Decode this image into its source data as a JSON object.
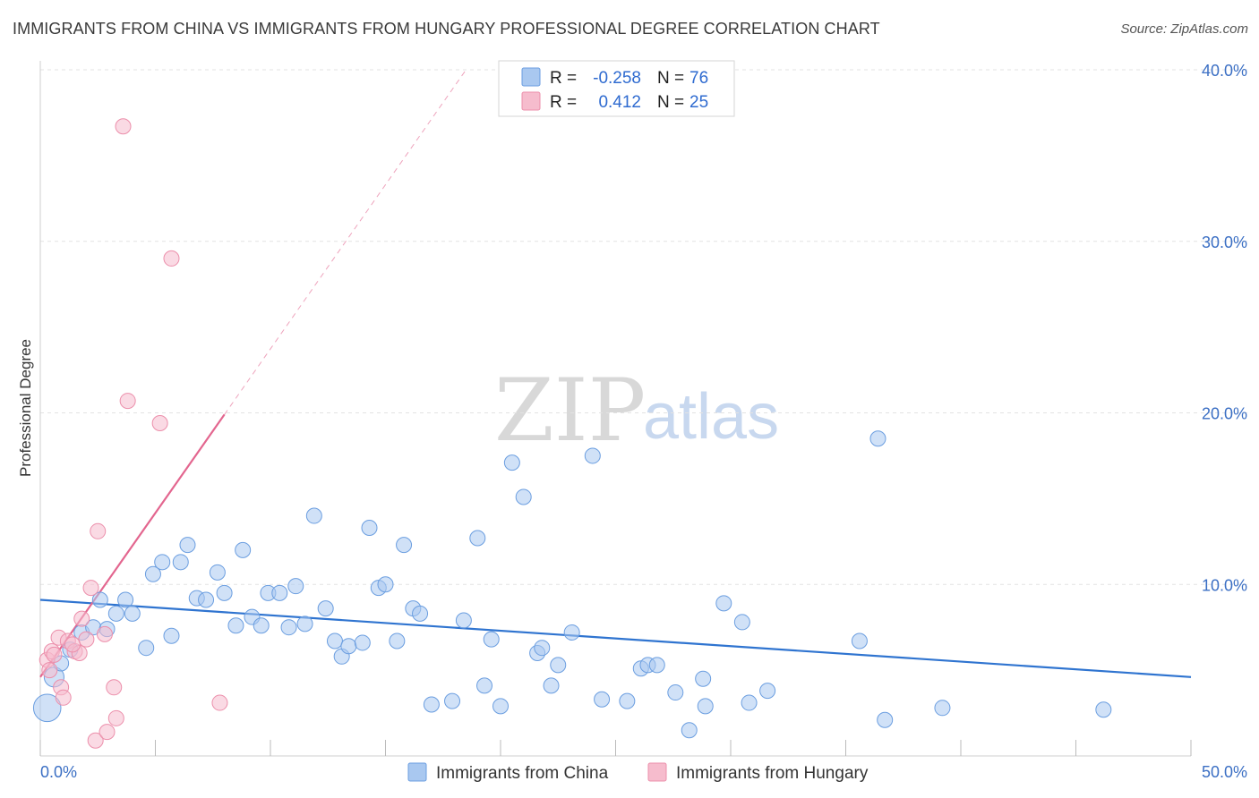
{
  "title": "IMMIGRANTS FROM CHINA VS IMMIGRANTS FROM HUNGARY PROFESSIONAL DEGREE CORRELATION CHART",
  "source": "Source: ZipAtlas.com",
  "watermark": {
    "zip": "ZIP",
    "atlas": "atlas"
  },
  "legend": {
    "rows": [
      {
        "r_label": "R =",
        "r_value": "-0.258",
        "n_label": "N =",
        "n_value": "76"
      },
      {
        "r_label": "R =",
        "r_value": "0.412",
        "n_label": "N =",
        "n_value": "25"
      }
    ]
  },
  "colors": {
    "china_fill": "#a9c8f0",
    "china_stroke": "#6b9ee0",
    "china_line": "#2f74d0",
    "hungary_fill": "#f6bccd",
    "hungary_stroke": "#ec8fab",
    "hungary_line": "#e3668f",
    "grid": "#e3e3e3",
    "axis_label": "#3b6fc4"
  },
  "chart_data": {
    "type": "scatter",
    "title": "IMMIGRANTS FROM CHINA VS IMMIGRANTS FROM HUNGARY PROFESSIONAL DEGREE CORRELATION CHART",
    "xlabel": "",
    "ylabel": "Professional Degree",
    "xlim": [
      0,
      50
    ],
    "ylim": [
      0,
      42
    ],
    "x_tick_labels": [
      "0.0%",
      "50.0%"
    ],
    "y_ticks": [
      10,
      20,
      30,
      40
    ],
    "y_tick_labels": [
      "10.0%",
      "20.0%",
      "30.0%",
      "40.0%"
    ],
    "grid": true,
    "legend_position": "top-center",
    "series": [
      {
        "name": "Immigrants from China",
        "r": -0.258,
        "n": 76,
        "trend": {
          "x": [
            0,
            50
          ],
          "y": [
            9.1,
            4.6
          ],
          "dashed_extension": false
        },
        "points": [
          {
            "x": 0.3,
            "y": 2.8,
            "s": 1.8
          },
          {
            "x": 0.6,
            "y": 4.6,
            "s": 1.3
          },
          {
            "x": 0.9,
            "y": 5.4,
            "s": 1.0
          },
          {
            "x": 1.3,
            "y": 6.2,
            "s": 1.0
          },
          {
            "x": 1.8,
            "y": 7.2,
            "s": 1.0
          },
          {
            "x": 2.3,
            "y": 7.5,
            "s": 1.0
          },
          {
            "x": 2.6,
            "y": 9.1,
            "s": 1.0
          },
          {
            "x": 2.9,
            "y": 7.4,
            "s": 1.0
          },
          {
            "x": 3.3,
            "y": 8.3,
            "s": 1.0
          },
          {
            "x": 3.7,
            "y": 9.1,
            "s": 1.0
          },
          {
            "x": 4.0,
            "y": 8.3,
            "s": 1.0
          },
          {
            "x": 4.6,
            "y": 6.3,
            "s": 1.0
          },
          {
            "x": 4.9,
            "y": 10.6,
            "s": 1.0
          },
          {
            "x": 5.3,
            "y": 11.3,
            "s": 1.0
          },
          {
            "x": 5.7,
            "y": 7.0,
            "s": 1.0
          },
          {
            "x": 6.1,
            "y": 11.3,
            "s": 1.0
          },
          {
            "x": 6.4,
            "y": 12.3,
            "s": 1.0
          },
          {
            "x": 6.8,
            "y": 9.2,
            "s": 1.0
          },
          {
            "x": 7.2,
            "y": 9.1,
            "s": 1.0
          },
          {
            "x": 7.7,
            "y": 10.7,
            "s": 1.0
          },
          {
            "x": 8.0,
            "y": 9.5,
            "s": 1.0
          },
          {
            "x": 8.5,
            "y": 7.6,
            "s": 1.0
          },
          {
            "x": 8.8,
            "y": 12.0,
            "s": 1.0
          },
          {
            "x": 9.2,
            "y": 8.1,
            "s": 1.0
          },
          {
            "x": 9.6,
            "y": 7.6,
            "s": 1.0
          },
          {
            "x": 9.9,
            "y": 9.5,
            "s": 1.0
          },
          {
            "x": 10.4,
            "y": 9.5,
            "s": 1.0
          },
          {
            "x": 10.8,
            "y": 7.5,
            "s": 1.0
          },
          {
            "x": 11.1,
            "y": 9.9,
            "s": 1.0
          },
          {
            "x": 11.5,
            "y": 7.7,
            "s": 1.0
          },
          {
            "x": 11.9,
            "y": 14.0,
            "s": 1.0
          },
          {
            "x": 12.4,
            "y": 8.6,
            "s": 1.0
          },
          {
            "x": 12.8,
            "y": 6.7,
            "s": 1.0
          },
          {
            "x": 13.1,
            "y": 5.8,
            "s": 1.0
          },
          {
            "x": 13.4,
            "y": 6.4,
            "s": 1.0
          },
          {
            "x": 14.0,
            "y": 6.6,
            "s": 1.0
          },
          {
            "x": 14.3,
            "y": 13.3,
            "s": 1.0
          },
          {
            "x": 14.7,
            "y": 9.8,
            "s": 1.0
          },
          {
            "x": 15.0,
            "y": 10.0,
            "s": 1.0
          },
          {
            "x": 15.5,
            "y": 6.7,
            "s": 1.0
          },
          {
            "x": 15.8,
            "y": 12.3,
            "s": 1.0
          },
          {
            "x": 16.2,
            "y": 8.6,
            "s": 1.0
          },
          {
            "x": 16.5,
            "y": 8.3,
            "s": 1.0
          },
          {
            "x": 17.0,
            "y": 3.0,
            "s": 1.0
          },
          {
            "x": 17.9,
            "y": 3.2,
            "s": 1.0
          },
          {
            "x": 18.4,
            "y": 7.9,
            "s": 1.0
          },
          {
            "x": 19.0,
            "y": 12.7,
            "s": 1.0
          },
          {
            "x": 19.3,
            "y": 4.1,
            "s": 1.0
          },
          {
            "x": 19.6,
            "y": 6.8,
            "s": 1.0
          },
          {
            "x": 20.0,
            "y": 2.9,
            "s": 1.0
          },
          {
            "x": 20.5,
            "y": 17.1,
            "s": 1.0
          },
          {
            "x": 21.0,
            "y": 15.1,
            "s": 1.0
          },
          {
            "x": 21.6,
            "y": 6.0,
            "s": 1.0
          },
          {
            "x": 21.8,
            "y": 6.3,
            "s": 1.0
          },
          {
            "x": 22.2,
            "y": 4.1,
            "s": 1.0
          },
          {
            "x": 22.5,
            "y": 5.3,
            "s": 1.0
          },
          {
            "x": 23.1,
            "y": 7.2,
            "s": 1.0
          },
          {
            "x": 24.0,
            "y": 17.5,
            "s": 1.0
          },
          {
            "x": 24.4,
            "y": 3.3,
            "s": 1.0
          },
          {
            "x": 25.5,
            "y": 3.2,
            "s": 1.0
          },
          {
            "x": 26.1,
            "y": 5.1,
            "s": 1.0
          },
          {
            "x": 26.4,
            "y": 5.3,
            "s": 1.0
          },
          {
            "x": 26.8,
            "y": 5.3,
            "s": 1.0
          },
          {
            "x": 27.6,
            "y": 3.7,
            "s": 1.0
          },
          {
            "x": 28.2,
            "y": 1.5,
            "s": 1.0
          },
          {
            "x": 28.8,
            "y": 4.5,
            "s": 1.0
          },
          {
            "x": 28.9,
            "y": 2.9,
            "s": 1.0
          },
          {
            "x": 29.7,
            "y": 8.9,
            "s": 1.0
          },
          {
            "x": 30.5,
            "y": 7.8,
            "s": 1.0
          },
          {
            "x": 30.8,
            "y": 3.1,
            "s": 1.0
          },
          {
            "x": 31.6,
            "y": 3.8,
            "s": 1.0
          },
          {
            "x": 35.6,
            "y": 6.7,
            "s": 1.0
          },
          {
            "x": 36.4,
            "y": 18.5,
            "s": 1.0
          },
          {
            "x": 36.7,
            "y": 2.1,
            "s": 1.0
          },
          {
            "x": 39.2,
            "y": 2.8,
            "s": 1.0
          },
          {
            "x": 46.2,
            "y": 2.7,
            "s": 1.0
          }
        ]
      },
      {
        "name": "Immigrants from Hungary",
        "r": 0.412,
        "n": 25,
        "trend": {
          "x": [
            0,
            8.0
          ],
          "y": [
            4.6,
            19.9
          ],
          "dashed_extension": {
            "x": [
              8.0,
              18.5
            ],
            "y": [
              19.9,
              40.0
            ]
          }
        },
        "points": [
          {
            "x": 0.3,
            "y": 5.6,
            "s": 1.0
          },
          {
            "x": 0.4,
            "y": 5.0,
            "s": 1.0
          },
          {
            "x": 0.5,
            "y": 6.1,
            "s": 1.0
          },
          {
            "x": 0.6,
            "y": 5.9,
            "s": 1.0
          },
          {
            "x": 0.8,
            "y": 6.9,
            "s": 1.0
          },
          {
            "x": 0.9,
            "y": 4.0,
            "s": 1.0
          },
          {
            "x": 1.0,
            "y": 3.4,
            "s": 1.0
          },
          {
            "x": 1.2,
            "y": 6.7,
            "s": 1.0
          },
          {
            "x": 1.5,
            "y": 6.1,
            "s": 1.0
          },
          {
            "x": 1.7,
            "y": 6.0,
            "s": 1.0
          },
          {
            "x": 1.8,
            "y": 8.0,
            "s": 1.0
          },
          {
            "x": 2.0,
            "y": 6.8,
            "s": 1.0
          },
          {
            "x": 2.2,
            "y": 9.8,
            "s": 1.0
          },
          {
            "x": 2.4,
            "y": 0.9,
            "s": 1.0
          },
          {
            "x": 2.5,
            "y": 13.1,
            "s": 1.0
          },
          {
            "x": 2.8,
            "y": 7.1,
            "s": 1.0
          },
          {
            "x": 2.9,
            "y": 1.4,
            "s": 1.0
          },
          {
            "x": 3.2,
            "y": 4.0,
            "s": 1.0
          },
          {
            "x": 3.3,
            "y": 2.2,
            "s": 1.0
          },
          {
            "x": 3.6,
            "y": 36.7,
            "s": 1.0
          },
          {
            "x": 3.8,
            "y": 20.7,
            "s": 1.0
          },
          {
            "x": 5.2,
            "y": 19.4,
            "s": 1.0
          },
          {
            "x": 5.7,
            "y": 29.0,
            "s": 1.0
          },
          {
            "x": 7.8,
            "y": 3.1,
            "s": 1.0
          },
          {
            "x": 1.4,
            "y": 6.5,
            "s": 1.0
          }
        ]
      }
    ]
  },
  "bottom_legend": [
    {
      "label": "Immigrants from China"
    },
    {
      "label": "Immigrants from Hungary"
    }
  ]
}
